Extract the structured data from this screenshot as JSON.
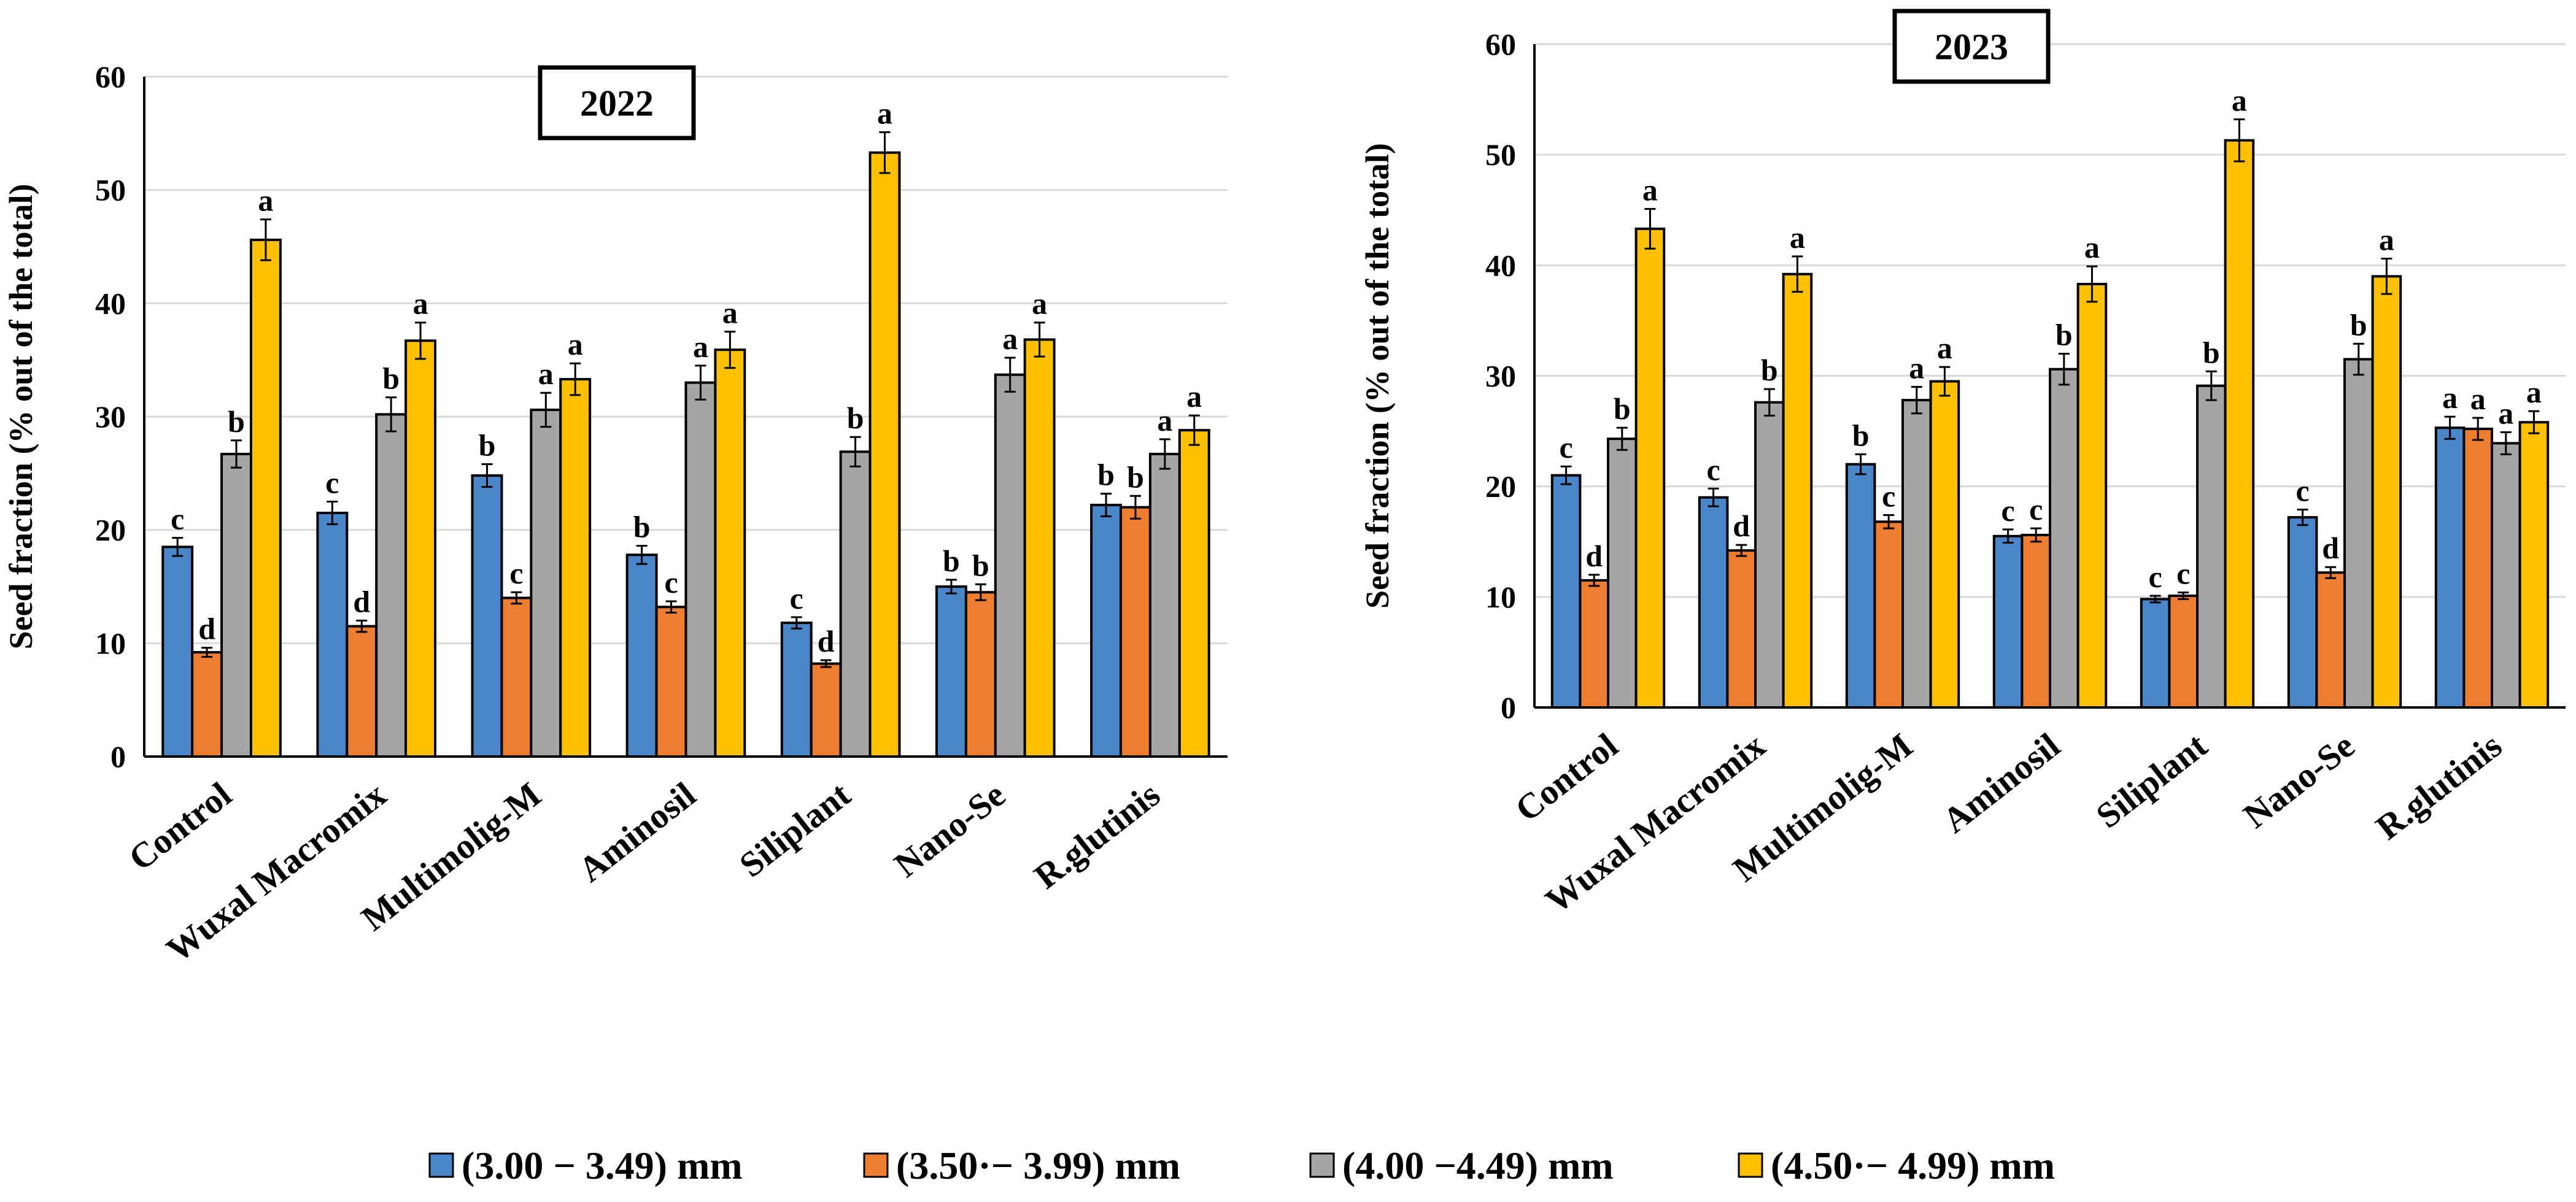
{
  "chart_data": [
    {
      "type": "bar",
      "title": "2022",
      "ylabel": "Seed fraction (% out of the total)",
      "xlabel": "",
      "ylim": [
        0,
        60
      ],
      "yticks": [
        0,
        10,
        20,
        30,
        40,
        50,
        60
      ],
      "categories": [
        "Control",
        "Wuxal Macromix",
        "Multimolig-M",
        "Aminosil",
        "Siliplant",
        "Nano-Se",
        "R.glutinis"
      ],
      "series": [
        {
          "name": "(3.00 − 3.49) mm",
          "color": "#4a86c8",
          "values": [
            18.5,
            21.5,
            24.8,
            17.8,
            11.8,
            15.0,
            22.2
          ],
          "errors": [
            0.8,
            1.0,
            1.0,
            0.8,
            0.5,
            0.6,
            1.0
          ],
          "letters": [
            "c",
            "c",
            "b",
            "b",
            "c",
            "b",
            "b"
          ]
        },
        {
          "name": "(3.50·− 3.99) mm",
          "color": "#ed7d31",
          "values": [
            9.2,
            11.5,
            14.0,
            13.2,
            8.2,
            14.5,
            22.0
          ],
          "errors": [
            0.4,
            0.5,
            0.5,
            0.5,
            0.3,
            0.7,
            1.0
          ],
          "letters": [
            "d",
            "d",
            "c",
            "c",
            "d",
            "b",
            "b"
          ]
        },
        {
          "name": "(4.00 −4.49) mm",
          "color": "#a5a5a5",
          "values": [
            26.7,
            30.2,
            30.6,
            33.0,
            26.9,
            33.7,
            26.7
          ],
          "errors": [
            1.2,
            1.5,
            1.5,
            1.5,
            1.3,
            1.5,
            1.3
          ],
          "letters": [
            "b",
            "b",
            "a",
            "a",
            "b",
            "a",
            "a"
          ]
        },
        {
          "name": "(4.50·− 4.99) mm",
          "color": "#ffc000",
          "values": [
            45.6,
            36.7,
            33.3,
            35.9,
            53.3,
            36.8,
            28.8
          ],
          "errors": [
            1.8,
            1.6,
            1.4,
            1.6,
            1.8,
            1.5,
            1.3
          ],
          "letters": [
            "a",
            "a",
            "a",
            "a",
            "a",
            "a",
            "a"
          ]
        }
      ]
    },
    {
      "type": "bar",
      "title": "2023",
      "ylabel": "Seed fraction (% out of the total)",
      "xlabel": "",
      "ylim": [
        0,
        60
      ],
      "yticks": [
        0,
        10,
        20,
        30,
        40,
        50,
        60
      ],
      "categories": [
        "Control",
        "Wuxal Macromix",
        "Multimolig-M",
        "Aminosil",
        "Siliplant",
        "Nano-Se",
        "R.glutinis"
      ],
      "series": [
        {
          "name": "(3.00 − 3.49) mm",
          "color": "#4a86c8",
          "values": [
            21.0,
            19.0,
            22.0,
            15.5,
            9.8,
            17.2,
            25.3
          ],
          "errors": [
            0.8,
            0.8,
            0.9,
            0.6,
            0.3,
            0.7,
            1.0
          ],
          "letters": [
            "c",
            "c",
            "b",
            "c",
            "c",
            "c",
            "a"
          ]
        },
        {
          "name": "(3.50·− 3.99) mm",
          "color": "#ed7d31",
          "values": [
            11.5,
            14.2,
            16.8,
            15.6,
            10.1,
            12.2,
            25.2
          ],
          "errors": [
            0.5,
            0.5,
            0.6,
            0.6,
            0.3,
            0.5,
            1.0
          ],
          "letters": [
            "d",
            "d",
            "c",
            "c",
            "c",
            "d",
            "a"
          ]
        },
        {
          "name": "(4.00 −4.49) mm",
          "color": "#a5a5a5",
          "values": [
            24.3,
            27.6,
            27.8,
            30.6,
            29.1,
            31.5,
            23.9
          ],
          "errors": [
            1.0,
            1.2,
            1.2,
            1.4,
            1.3,
            1.4,
            1.0
          ],
          "letters": [
            "b",
            "b",
            "a",
            "b",
            "b",
            "b",
            "a"
          ]
        },
        {
          "name": "(4.50·− 4.99) mm",
          "color": "#ffc000",
          "values": [
            43.3,
            39.2,
            29.5,
            38.3,
            51.3,
            39.0,
            25.8
          ],
          "errors": [
            1.8,
            1.6,
            1.3,
            1.6,
            1.9,
            1.6,
            1.0
          ],
          "letters": [
            "a",
            "a",
            "a",
            "a",
            "a",
            "a",
            "a"
          ]
        }
      ]
    }
  ],
  "legend": [
    {
      "label": "(3.00 − 3.49) mm",
      "color": "#4a86c8"
    },
    {
      "label": "(3.50·− 3.99) mm",
      "color": "#ed7d31"
    },
    {
      "label": "(4.00 −4.49) mm",
      "color": "#a5a5a5"
    },
    {
      "label": "(4.50·− 4.99) mm",
      "color": "#ffc000"
    }
  ]
}
